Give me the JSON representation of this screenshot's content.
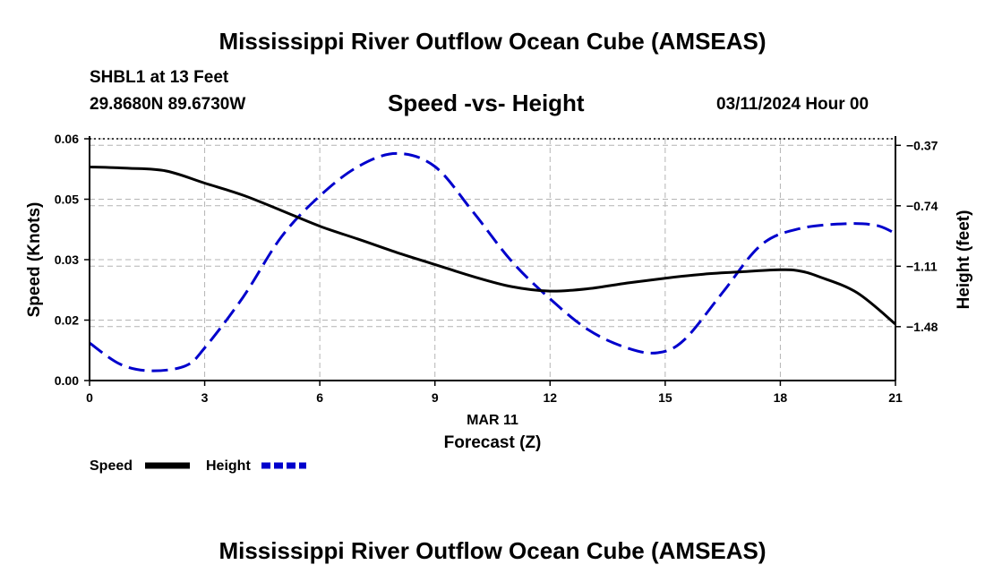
{
  "header": {
    "title": "Mississippi River Outflow Ocean Cube (AMSEAS)",
    "station": "SHBL1 at 13 Feet",
    "coords": "29.8680N  89.6730W",
    "subtitle": "Speed -vs- Height",
    "datetime": "03/11/2024 Hour 00"
  },
  "footer": {
    "title": "Mississippi River Outflow Ocean Cube (AMSEAS)"
  },
  "colors": {
    "speed": "#000000",
    "height": "#0000cc",
    "grid": "#b4b4b4"
  },
  "chart_data": {
    "type": "line",
    "title": "Speed -vs- Height",
    "xlabel": "Forecast (Z)",
    "xdate_label": "MAR 11",
    "ylabel_left": "Speed (Knots)",
    "ylabel_right": "Height (feet)",
    "xlim": [
      0,
      21
    ],
    "ylim_left": [
      0,
      0.06
    ],
    "ylim_right": [
      -1.81,
      -0.33
    ],
    "x_ticks": [
      0,
      3,
      6,
      9,
      12,
      15,
      18,
      21
    ],
    "x_tick_labels": [
      "0",
      "3",
      "6",
      "9",
      "12",
      "15",
      "18",
      "21"
    ],
    "y_left_ticks": [
      0,
      0.015,
      0.03,
      0.045,
      0.06
    ],
    "y_left_tick_labels": [
      "0.00",
      "0.02",
      "0.03",
      "0.05",
      "0.06"
    ],
    "y_right_ticks": [
      -0.37,
      -0.74,
      -1.11,
      -1.48
    ],
    "y_right_tick_labels": [
      "−0.37",
      "−0.74",
      "−1.11",
      "−1.48"
    ],
    "grid": true,
    "legend": "bottom-left",
    "series": [
      {
        "name": "Speed",
        "axis": "left",
        "style": "solid",
        "x": [
          0,
          1,
          2,
          3,
          4,
          5,
          6,
          7,
          8,
          9,
          10,
          11,
          12,
          13,
          14,
          15,
          16,
          17,
          18,
          18.5,
          19,
          20,
          21
        ],
        "values": [
          0.053,
          0.0527,
          0.052,
          0.049,
          0.046,
          0.0422,
          0.0383,
          0.0351,
          0.0318,
          0.0288,
          0.0258,
          0.0233,
          0.0222,
          0.0228,
          0.0242,
          0.0254,
          0.0264,
          0.027,
          0.0275,
          0.0272,
          0.0258,
          0.0218,
          0.014
        ]
      },
      {
        "name": "Height",
        "axis": "right",
        "style": "dashed",
        "x": [
          0,
          0.8,
          1.6,
          2.5,
          3,
          4,
          5,
          6,
          7,
          8,
          9,
          10,
          11,
          12,
          13,
          14,
          14.8,
          15.5,
          16.5,
          17.5,
          18.5,
          19.7,
          20.5,
          21
        ],
        "values": [
          -1.58,
          -1.71,
          -1.75,
          -1.72,
          -1.61,
          -1.3,
          -0.93,
          -0.68,
          -0.5,
          -0.42,
          -0.5,
          -0.78,
          -1.08,
          -1.31,
          -1.5,
          -1.61,
          -1.64,
          -1.56,
          -1.27,
          -0.98,
          -0.88,
          -0.85,
          -0.86,
          -0.91
        ]
      }
    ]
  }
}
